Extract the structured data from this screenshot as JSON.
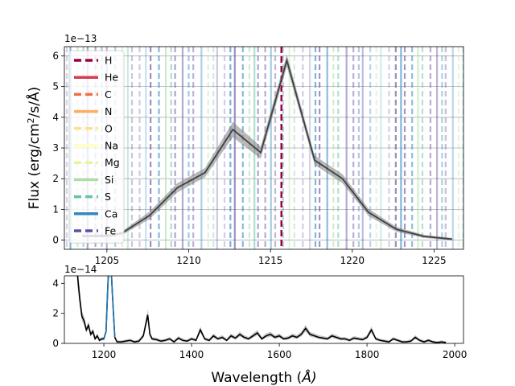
{
  "chart_data": [
    {
      "type": "line",
      "panel": "top",
      "ylabel_main": "Flux (erg/cm",
      "ylabel_sup": "2",
      "ylabel_rest": "/s/Å)",
      "offset_text": "1e−13",
      "xlim": [
        1202.4,
        1226.8
      ],
      "ylim": [
        -0.3,
        6.3
      ],
      "xticks": [
        1205,
        1210,
        1215,
        1220,
        1225
      ],
      "yticks": [
        0,
        1,
        2,
        3,
        4,
        5,
        6
      ],
      "grid": "horizontal",
      "legend_position": "upper-left",
      "legend": [
        {
          "label": "H",
          "color": "#9e0142",
          "style": "dashed"
        },
        {
          "label": "He",
          "color": "#d53e4f",
          "style": "solid"
        },
        {
          "label": "C",
          "color": "#f46d43",
          "style": "dashed"
        },
        {
          "label": "N",
          "color": "#fdae61",
          "style": "solid"
        },
        {
          "label": "O",
          "color": "#fee08b",
          "style": "dashed"
        },
        {
          "label": "Na",
          "color": "#ffffbf",
          "style": "solid"
        },
        {
          "label": "Mg",
          "color": "#e6f598",
          "style": "dashed"
        },
        {
          "label": "Si",
          "color": "#abdda4",
          "style": "solid"
        },
        {
          "label": "S",
          "color": "#66c2a5",
          "style": "dashed"
        },
        {
          "label": "Ca",
          "color": "#3288bd",
          "style": "solid"
        },
        {
          "label": "Fe",
          "color": "#5e4fa2",
          "style": "dashed"
        }
      ],
      "h_line_wavelength": 1215.67,
      "x": [
        1203.5,
        1205.1,
        1205.9,
        1207.6,
        1209.3,
        1211.0,
        1212.7,
        1214.4,
        1216.0,
        1217.7,
        1219.4,
        1221.0,
        1222.7,
        1224.4,
        1226.1
      ],
      "y": [
        0.13,
        0.14,
        0.22,
        0.8,
        1.7,
        2.2,
        3.6,
        2.85,
        5.85,
        2.6,
        2.0,
        0.9,
        0.35,
        0.12,
        0.03
      ],
      "y_err": [
        0.05,
        0.05,
        0.06,
        0.12,
        0.15,
        0.15,
        0.25,
        0.2,
        0.2,
        0.15,
        0.15,
        0.12,
        0.08,
        0.05,
        0.04
      ]
    },
    {
      "type": "line",
      "panel": "bottom",
      "xlabel_main": "Wavelength (",
      "xlabel_rest": "Å)",
      "offset_text": "1e−14",
      "xlim": [
        1110,
        2020
      ],
      "ylim": [
        0,
        4.5
      ],
      "xticks": [
        1200,
        1400,
        1600,
        1800,
        2000
      ],
      "yticks": [
        0,
        2,
        4
      ],
      "series_color": "#000000",
      "highlight_color": "#1f77b4",
      "highlight_range": [
        1202.4,
        1226.8
      ],
      "x": [
        1140,
        1145,
        1150,
        1155,
        1160,
        1165,
        1170,
        1175,
        1180,
        1185,
        1190,
        1195,
        1200,
        1205,
        1210,
        1215,
        1220,
        1225,
        1230,
        1240,
        1250,
        1260,
        1270,
        1280,
        1290,
        1300,
        1305,
        1310,
        1320,
        1330,
        1340,
        1350,
        1360,
        1370,
        1380,
        1390,
        1400,
        1410,
        1420,
        1430,
        1440,
        1450,
        1460,
        1470,
        1480,
        1490,
        1500,
        1510,
        1520,
        1530,
        1540,
        1550,
        1560,
        1570,
        1580,
        1590,
        1600,
        1610,
        1620,
        1630,
        1640,
        1650,
        1660,
        1670,
        1680,
        1690,
        1700,
        1710,
        1720,
        1730,
        1740,
        1750,
        1760,
        1770,
        1780,
        1790,
        1800,
        1810,
        1820,
        1830,
        1840,
        1850,
        1860,
        1870,
        1880,
        1890,
        1900,
        1910,
        1920,
        1930,
        1940,
        1950,
        1960,
        1970,
        1980
      ],
      "y": [
        4.5,
        3.0,
        1.8,
        1.5,
        0.9,
        1.2,
        0.6,
        0.8,
        0.3,
        0.5,
        0.2,
        0.3,
        0.3,
        0.8,
        4.5,
        6.0,
        3.0,
        0.4,
        0.1,
        0.1,
        0.15,
        0.2,
        0.1,
        0.15,
        0.5,
        1.9,
        0.6,
        0.3,
        0.25,
        0.15,
        0.2,
        0.3,
        0.1,
        0.35,
        0.2,
        0.15,
        0.3,
        0.2,
        0.9,
        0.3,
        0.2,
        0.5,
        0.3,
        0.4,
        0.2,
        0.5,
        0.35,
        0.6,
        0.4,
        0.3,
        0.5,
        0.7,
        0.3,
        0.5,
        0.6,
        0.4,
        0.5,
        0.3,
        0.35,
        0.5,
        0.4,
        0.6,
        1.0,
        0.6,
        0.5,
        0.4,
        0.35,
        0.3,
        0.5,
        0.4,
        0.3,
        0.3,
        0.2,
        0.35,
        0.3,
        0.25,
        0.4,
        0.9,
        0.3,
        0.2,
        0.15,
        0.1,
        0.3,
        0.2,
        0.1,
        0.1,
        0.15,
        0.4,
        0.2,
        0.1,
        0.2,
        0.1,
        0.05,
        0.1,
        0.05
      ]
    }
  ]
}
